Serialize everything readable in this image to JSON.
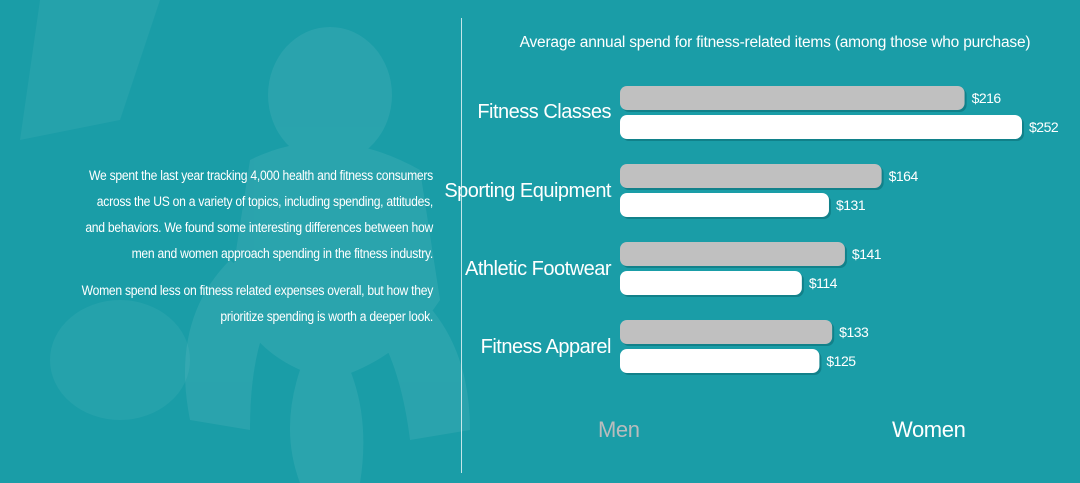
{
  "intro": {
    "paragraph_1": "We spent the last year tracking 4,000 health and fitness consumers across the US on a variety of topics, including spending, attitudes, and behaviors. We found some interesting differences between how men and women approach spending in the fitness industry.",
    "paragraph_2": "Women spend less on fitness related expenses overall, but how they prioritize spending is worth a deeper look."
  },
  "colors": {
    "background": "#1a9da7",
    "men": "#c0c0c0",
    "women": "#ffffff"
  },
  "chart_data": {
    "type": "bar",
    "orientation": "horizontal",
    "title": "Average annual spend for fitness-related items (among those who purchase)",
    "categories": [
      "Fitness Classes",
      "Sporting Equipment",
      "Athletic Footwear",
      "Fitness Apparel"
    ],
    "series": [
      {
        "name": "Men",
        "values": [
          216,
          164,
          141,
          133
        ],
        "labels": [
          "$216",
          "$164",
          "$141",
          "$133"
        ],
        "color": "#c0c0c0"
      },
      {
        "name": "Women",
        "values": [
          252,
          131,
          114,
          125
        ],
        "labels": [
          "$252",
          "$131",
          "$114",
          "$125"
        ],
        "color": "#ffffff"
      }
    ],
    "legend_position": "bottom",
    "grid": false
  }
}
